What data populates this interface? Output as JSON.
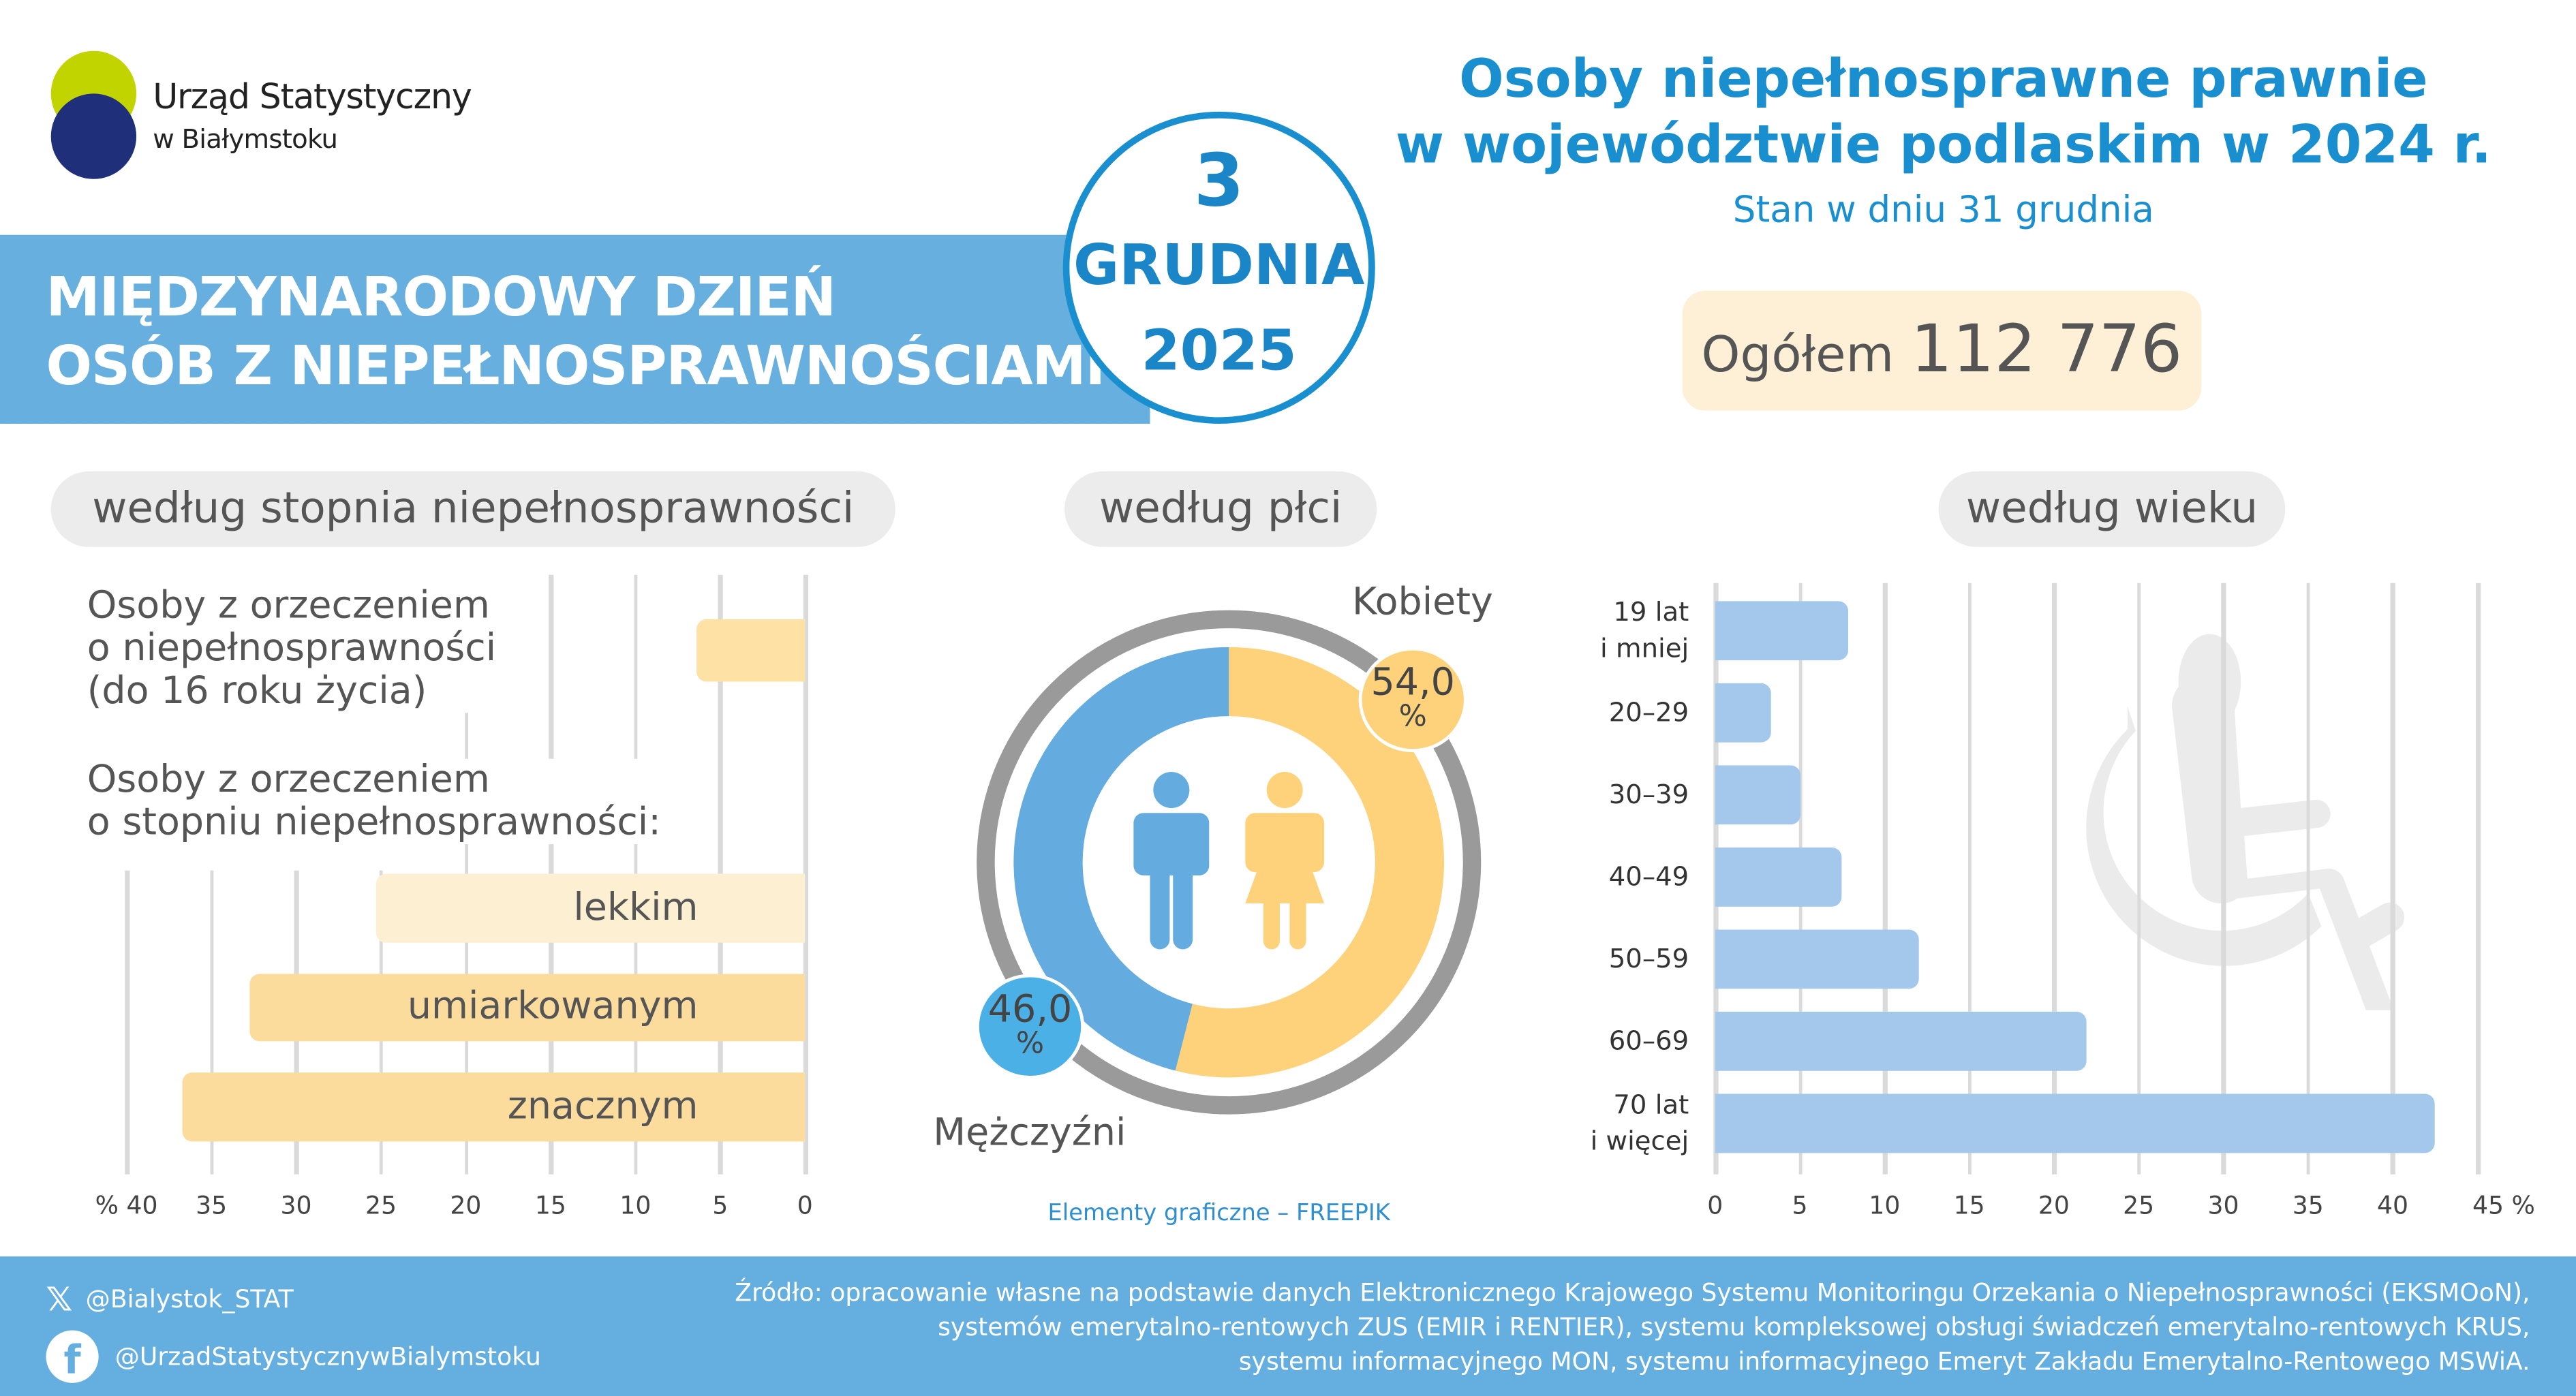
{
  "logo": {
    "line1": "Urząd Statystyczny",
    "line2": "w Białymstoku",
    "colors": [
      "#c2d400",
      "#1f2f7a"
    ]
  },
  "banner": {
    "line1": "MIĘDZYNARODOWY DZIEŃ",
    "line2": "OSÓB Z NIEPEŁNOSPRAWNOŚCIAMI"
  },
  "date": {
    "day": "3",
    "month": "GRUDNIA",
    "year": "2025"
  },
  "header": {
    "title1": "Osoby niepełnosprawne prawnie",
    "title2": "w województwie podlaskim w 2024 r.",
    "subtitle": "Stan w dniu 31 grudnia"
  },
  "total": {
    "label": "Ogółem",
    "value": "112 776"
  },
  "sections": {
    "degree": "według stopnia niepełnosprawności",
    "sex": "według płci",
    "age": "według wieku"
  },
  "degree_labels": {
    "group1_l1": "Osoby z orzeczeniem",
    "group1_l2": "o niepełnosprawności",
    "group1_l3": "(do 16 roku życia)",
    "group2_l1": "Osoby z orzeczeniem",
    "group2_l2": "o stopniu niepełnosprawności:"
  },
  "sex_labels": {
    "women": "Kobiety",
    "men": "Mężczyźni",
    "women_value": "54,0",
    "men_value": "46,0",
    "pct": "%",
    "credit": "Elementy graficzne – FREEPIK"
  },
  "chart_data": [
    {
      "type": "bar",
      "orientation": "horizontal",
      "direction": "right-to-left",
      "categories": [
        "do 16 roku życia",
        "lekkim",
        "umiarkowanym",
        "znacznym"
      ],
      "values": [
        6.4,
        25.3,
        32.7,
        36.7
      ],
      "xlim": [
        0,
        40
      ],
      "xticks": [
        "0",
        "5",
        "10",
        "15",
        "20",
        "25",
        "30",
        "35",
        "% 40"
      ],
      "grid": true,
      "colors": [
        "#fde1a5",
        "#fdefd2",
        "#fcdc9d",
        "#fcdc9d"
      ]
    },
    {
      "type": "pie",
      "donut": true,
      "categories": [
        "Kobiety",
        "Mężczyźni"
      ],
      "values": [
        54.0,
        46.0
      ],
      "colors": [
        "#fdd27b",
        "#64acdf"
      ]
    },
    {
      "type": "bar",
      "orientation": "horizontal",
      "categories": [
        "19 lat i mniej",
        "20–29",
        "30–39",
        "40–49",
        "50–59",
        "60–69",
        "70 lat i więcej"
      ],
      "category_lines": [
        [
          "19 lat",
          "i mniej"
        ],
        [
          "20–29"
        ],
        [
          "30–39"
        ],
        [
          "40–49"
        ],
        [
          "50–59"
        ],
        [
          "60–69"
        ],
        [
          "70 lat",
          "i więcej"
        ]
      ],
      "values": [
        7.9,
        3.3,
        5.0,
        7.5,
        12.0,
        21.9,
        42.5
      ],
      "xlim": [
        0,
        45
      ],
      "xticks": [
        "0",
        "5",
        "10",
        "15",
        "20",
        "25",
        "30",
        "35",
        "40",
        "45 %"
      ],
      "grid": true,
      "color": "#a3c8ec"
    }
  ],
  "footer": {
    "twitter": "@Bialystok_STAT",
    "facebook": "@UrzadStatystycznywBialymstoku",
    "source1": "Źródło: opracowanie własne na podstawie danych Elektronicznego Krajowego Systemu Monitoringu Orzekania o Niepełnosprawności (EKSMOoN),",
    "source2": "systemów emerytalno-rentowych ZUS (EMIR i RENTIER), systemu kompleksowej obsługi świadczeń emerytalno-rentowych KRUS,",
    "source3": "systemu informacyjnego MON, systemu informacyjnego Emeryt Zakładu Emerytalno-Rentowego MSWiA."
  }
}
